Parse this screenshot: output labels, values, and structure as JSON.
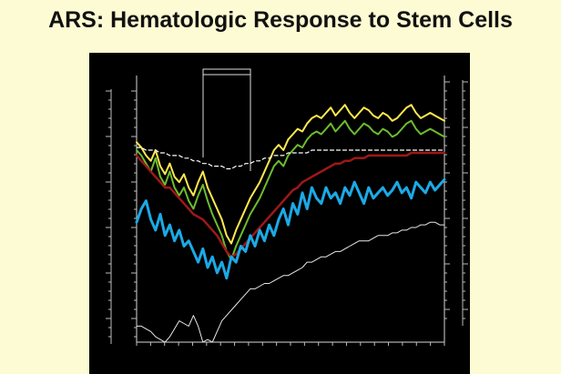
{
  "slide": {
    "title": "ARS: Hematologic Response to Stem Cells"
  },
  "chart_data": {
    "type": "line",
    "title": "",
    "xlabel": "",
    "ylabel": "",
    "x": [
      0,
      1,
      2,
      3,
      4,
      5,
      6,
      7,
      8,
      9,
      10,
      11,
      12,
      13,
      14,
      15,
      16,
      17,
      18,
      19,
      20,
      21,
      22,
      23,
      24,
      25,
      26,
      27,
      28,
      29,
      30,
      31,
      32,
      33,
      34,
      35,
      36,
      37,
      38,
      39,
      40,
      41,
      42,
      43,
      44,
      45,
      46,
      47,
      48,
      49,
      50,
      51,
      52,
      53,
      54,
      55,
      56,
      57,
      58,
      59,
      60,
      61,
      62,
      63,
      64,
      65
    ],
    "xlim": [
      0,
      65
    ],
    "ylim": [
      0,
      100
    ],
    "grid": false,
    "legend": "none",
    "note_legibility": "",
    "series": [
      {
        "color": "#ffe94d",
        "values": [
          75,
          73,
          70,
          68,
          72,
          66,
          63,
          67,
          62,
          60,
          63,
          58,
          55,
          60,
          64,
          58,
          54,
          50,
          46,
          40,
          37,
          42,
          46,
          50,
          54,
          57,
          60,
          64,
          68,
          72,
          74,
          72,
          76,
          78,
          80,
          79,
          82,
          84,
          85,
          84,
          86,
          88,
          85,
          87,
          89,
          86,
          84,
          86,
          88,
          87,
          85,
          84,
          86,
          85,
          83,
          84,
          86,
          88,
          89,
          86,
          84,
          85,
          86,
          85,
          84,
          83
        ],
        "width": 2
      },
      {
        "color": "#6cbd2e",
        "values": [
          72,
          70,
          67,
          64,
          69,
          62,
          59,
          64,
          58,
          55,
          58,
          53,
          50,
          55,
          59,
          53,
          48,
          44,
          40,
          34,
          31,
          36,
          40,
          44,
          48,
          51,
          54,
          58,
          62,
          66,
          68,
          66,
          70,
          72,
          74,
          73,
          76,
          78,
          79,
          78,
          80,
          82,
          79,
          81,
          83,
          80,
          78,
          80,
          82,
          81,
          79,
          78,
          80,
          79,
          77,
          78,
          80,
          82,
          83,
          80,
          78,
          79,
          80,
          79,
          78,
          77
        ],
        "width": 2
      },
      {
        "color": "#9e1818",
        "values": [
          70,
          68,
          66,
          64,
          62,
          60,
          58,
          58,
          56,
          54,
          52,
          50,
          48,
          47,
          46,
          44,
          42,
          40,
          37,
          34,
          32,
          33,
          35,
          37,
          39,
          41,
          43,
          45,
          47,
          49,
          51,
          53,
          55,
          57,
          58,
          60,
          61,
          62,
          63,
          64,
          65,
          66,
          67,
          67,
          68,
          68,
          69,
          69,
          69,
          70,
          70,
          70,
          70,
          70,
          70,
          70,
          70,
          70,
          71,
          71,
          71,
          71,
          71,
          71,
          71,
          71
        ],
        "width": 2.5
      },
      {
        "color": "#ffffff",
        "values": [
          73,
          73,
          72,
          72,
          72,
          71,
          71,
          70,
          70,
          70,
          69,
          69,
          68,
          68,
          67,
          67,
          66,
          66,
          66,
          65,
          65,
          66,
          66,
          67,
          67,
          68,
          68,
          69,
          69,
          70,
          70,
          70,
          71,
          71,
          71,
          71,
          71,
          72,
          72,
          72,
          72,
          72,
          72,
          72,
          72,
          72,
          72,
          72,
          72,
          72,
          72,
          72,
          72,
          72,
          72,
          72,
          72,
          72,
          72,
          72,
          72,
          72,
          72,
          72,
          72,
          72
        ],
        "width": 1.2,
        "dash": "4,3"
      },
      {
        "color": "#1ca9e6",
        "values": [
          45,
          50,
          53,
          46,
          42,
          48,
          40,
          44,
          38,
          42,
          36,
          38,
          34,
          30,
          35,
          28,
          32,
          26,
          30,
          24,
          32,
          30,
          36,
          34,
          40,
          36,
          42,
          38,
          44,
          40,
          46,
          50,
          44,
          52,
          48,
          56,
          50,
          58,
          54,
          52,
          58,
          54,
          56,
          52,
          58,
          55,
          60,
          56,
          52,
          58,
          54,
          56,
          58,
          55,
          57,
          60,
          56,
          58,
          54,
          60,
          58,
          56,
          60,
          57,
          59,
          61
        ],
        "width": 3
      },
      {
        "color": "#e8e8e8",
        "values": [
          6,
          6,
          5,
          4,
          2,
          1,
          0,
          2,
          5,
          8,
          7,
          6,
          10,
          6,
          0,
          1,
          0,
          4,
          8,
          10,
          12,
          14,
          16,
          18,
          20,
          20,
          21,
          22,
          22,
          23,
          24,
          25,
          25,
          26,
          27,
          28,
          30,
          30,
          31,
          32,
          32,
          33,
          34,
          34,
          35,
          36,
          37,
          38,
          38,
          38,
          39,
          40,
          40,
          40,
          41,
          41,
          42,
          42,
          43,
          43,
          44,
          44,
          45,
          45,
          44,
          44
        ],
        "width": 1
      }
    ]
  }
}
